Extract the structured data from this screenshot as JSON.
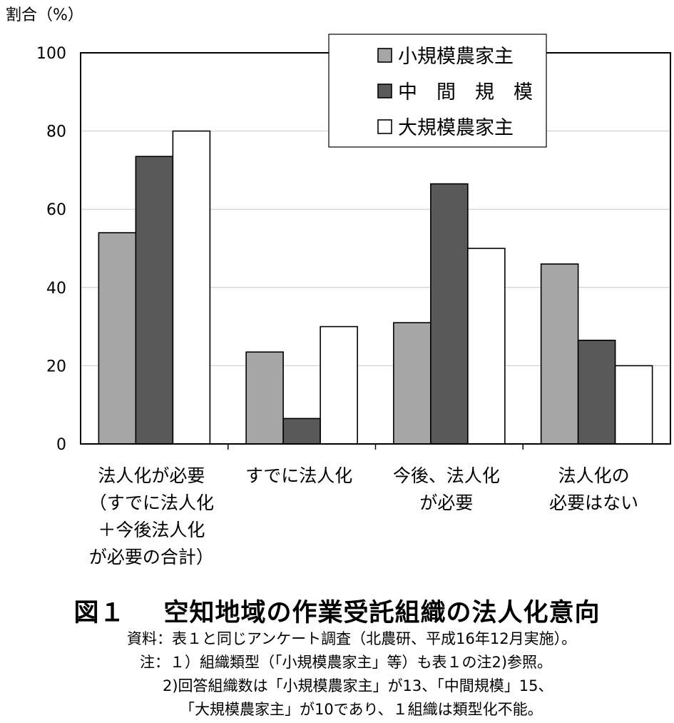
{
  "chart_data": {
    "type": "bar",
    "ylabel": "割合（%）",
    "ylim": [
      0,
      100
    ],
    "yticks": [
      "0",
      "20",
      "40",
      "60",
      "80",
      "100"
    ],
    "grid": true,
    "legend_position": "top-right",
    "categories": [
      [
        "法人化が必要",
        "（すでに法人化",
        "＋今後法人化",
        "が必要の合計）"
      ],
      [
        "すでに法人化"
      ],
      [
        "今後、法人化",
        "が必要"
      ],
      [
        "法人化の",
        "必要はない"
      ]
    ],
    "series": [
      {
        "name": "小規模農家主",
        "color": "#a6a6a6",
        "values": [
          54,
          23.5,
          31,
          46
        ]
      },
      {
        "name": "中　間　規　模",
        "color": "#595959",
        "values": [
          73.5,
          6.5,
          66.5,
          26.5
        ]
      },
      {
        "name": "大規模農家主",
        "color": "#ffffff",
        "values": [
          80,
          30,
          50,
          20
        ]
      }
    ]
  },
  "figure": {
    "number": "図１",
    "title": "空知地域の作業受託組織の法人化意向"
  },
  "notes": {
    "source": "資料：表１と同じアンケート調査（北農研、平成16年12月実施）。",
    "note1": "注：１）組織類型（「小規模農家主」等）も表１の注2)参照。",
    "note2a": "2)回答組織数は「小規模農家主」が13、「中間規模」15、",
    "note2b": "「大規模農家主」が10であり、１組織は類型化不能。"
  }
}
